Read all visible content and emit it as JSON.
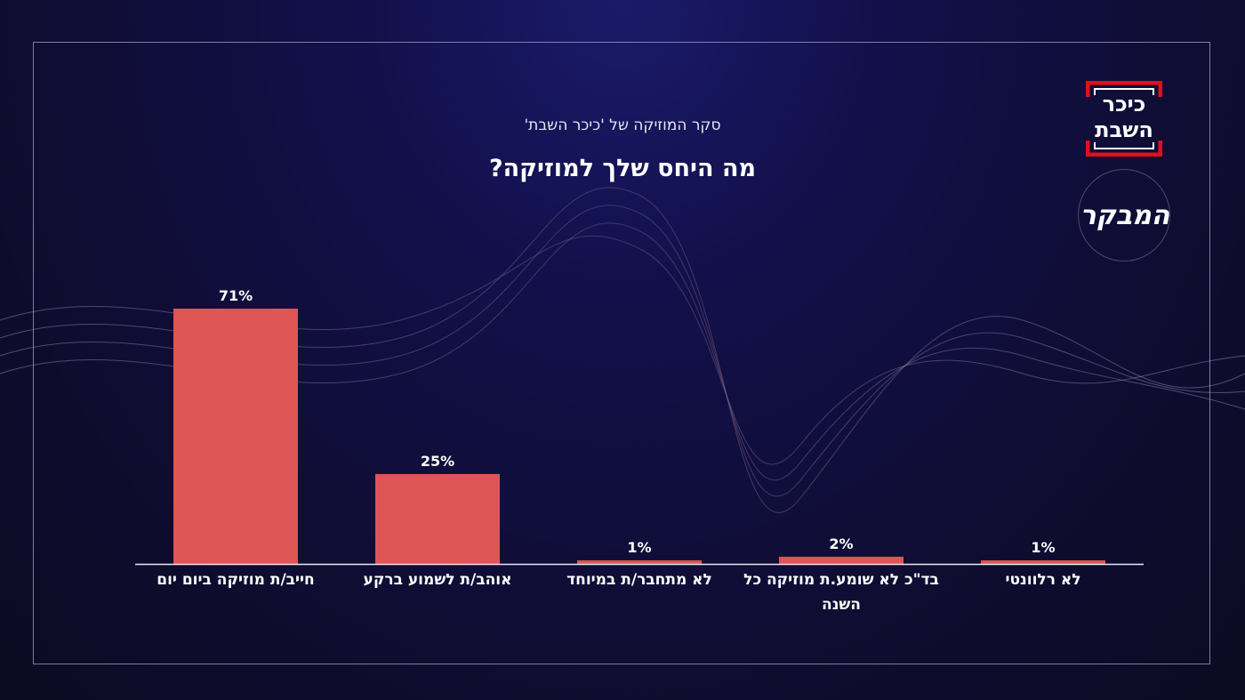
{
  "header": {
    "subtitle": "סקר המוזיקה של 'כיכר השבת'",
    "title": "מה היחס שלך למוזיקה?"
  },
  "logos": {
    "kikar": "כיכר השבת",
    "second": "המבקר"
  },
  "chart_data": {
    "type": "bar",
    "title": "מה היחס שלך למוזיקה?",
    "subtitle": "סקר המוזיקה של 'כיכר השבת'",
    "categories": [
      "חייב/ת מוזיקה ביום יום",
      "אוהב/ת לשמוע ברקע",
      "לא מתחבר/ת במיוחד",
      "בד\"כ לא שומע.ת מוזיקה כל השנה",
      "לא רלוונטי"
    ],
    "values": [
      71,
      25,
      1,
      2,
      1
    ],
    "value_labels": [
      "71%",
      "25%",
      "1%",
      "2%",
      "1%"
    ],
    "xlabel": "",
    "ylabel": "",
    "ylim": [
      0,
      71
    ],
    "grid": false,
    "bar_color": "#dd5555"
  }
}
